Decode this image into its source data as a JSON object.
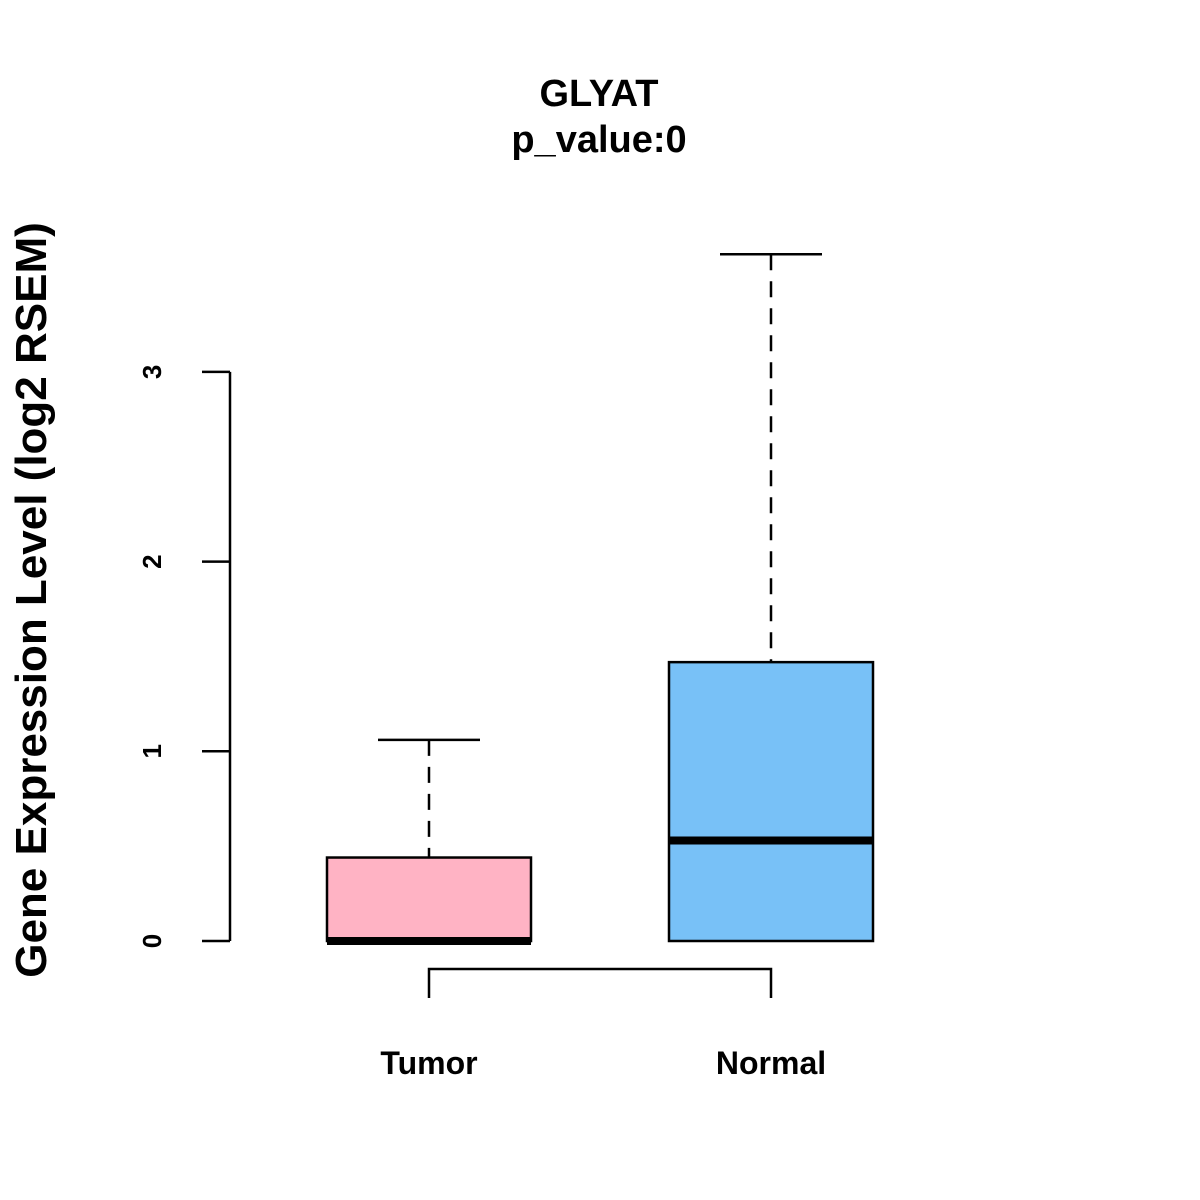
{
  "chart_data": {
    "type": "boxplot",
    "title": "GLYAT",
    "subtitle": "p_value:0",
    "ylabel": "Gene Expression Level (log2 RSEM)",
    "xlabel": "",
    "ylim": [
      0,
      3
    ],
    "yticks": [
      0,
      1,
      2,
      3
    ],
    "categories": [
      "Tumor",
      "Normal"
    ],
    "series": [
      {
        "name": "Tumor",
        "min": 0,
        "q1": 0,
        "median": 0,
        "q3": 0.44,
        "max": 1.06,
        "color": "#ffb3c4"
      },
      {
        "name": "Normal",
        "min": 0,
        "q1": 0,
        "median": 0.53,
        "q3": 1.47,
        "max": 3.62,
        "color": "#78c1f7"
      }
    ],
    "comparison_bracket": [
      "Tumor",
      "Normal"
    ],
    "grid": false
  }
}
